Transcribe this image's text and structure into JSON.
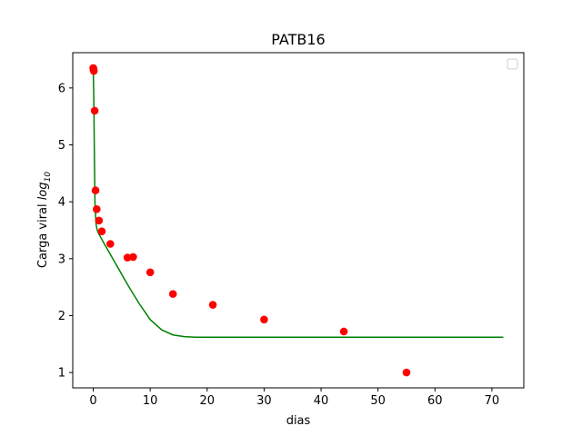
{
  "chart_data": {
    "type": "scatter",
    "title": "PATB16",
    "xlabel": "dias",
    "ylabel": {
      "main": "Carga viral ",
      "log": "log",
      "sub": "10"
    },
    "xlim": [
      -3.6,
      75.6
    ],
    "ylim": [
      0.73,
      6.62
    ],
    "xticks": [
      0,
      10,
      20,
      30,
      40,
      50,
      60,
      70
    ],
    "yticks": [
      1,
      2,
      3,
      4,
      5,
      6
    ],
    "grid": false,
    "legend": "top-right (empty)",
    "series": [
      {
        "kind": "points",
        "color": "#ff0000",
        "x": [
          0.0,
          0.05,
          0.1,
          0.25,
          0.4,
          0.6,
          1.0,
          1.5,
          3.0,
          6.0,
          7.0,
          10.0,
          14.0,
          21.0,
          30.0,
          44.0,
          55.0
        ],
        "y": [
          6.35,
          6.32,
          6.3,
          5.6,
          4.2,
          3.87,
          3.67,
          3.48,
          3.26,
          3.02,
          3.03,
          2.76,
          2.38,
          2.19,
          1.93,
          1.72,
          1.0
        ]
      },
      {
        "kind": "line",
        "color": "#008000",
        "x": [
          0.0,
          0.1,
          0.2,
          0.3,
          0.4,
          0.5,
          0.7,
          1.0,
          2.0,
          4.0,
          6.0,
          8.0,
          10.0,
          12.0,
          14.0,
          16.0,
          18.0,
          20.0,
          30.0,
          40.0,
          50.0,
          60.0,
          72.0
        ],
        "y": [
          6.3,
          5.8,
          4.8,
          4.0,
          3.75,
          3.6,
          3.5,
          3.43,
          3.25,
          2.9,
          2.55,
          2.22,
          1.93,
          1.75,
          1.66,
          1.63,
          1.62,
          1.62,
          1.62,
          1.62,
          1.62,
          1.62,
          1.62
        ]
      }
    ]
  }
}
